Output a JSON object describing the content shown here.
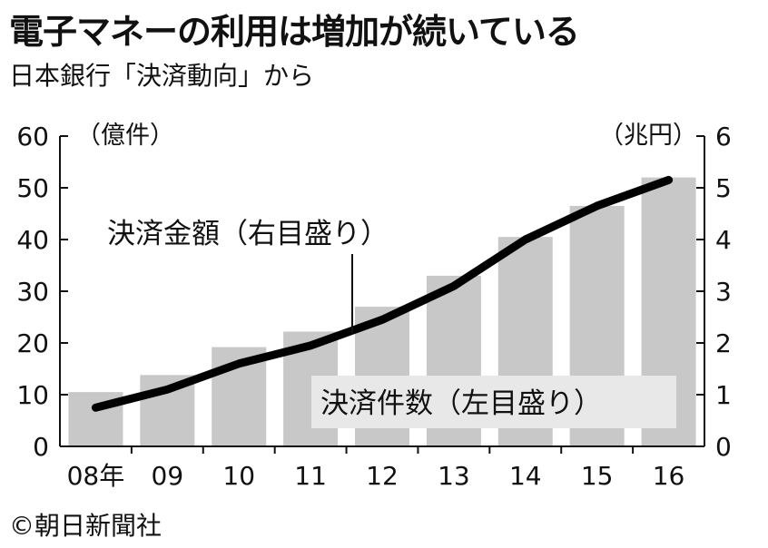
{
  "title": "電子マネーの利用は増加が続いている",
  "subtitle": "日本銀行「決済動向」から",
  "credit": "©朝日新聞社",
  "colors": {
    "bar": "#c8c8c8",
    "line": "#000000",
    "label_box": "#e8e8e8"
  },
  "chart_data": {
    "type": "bar+line",
    "categories": [
      "08年",
      "09",
      "10",
      "11",
      "12",
      "13",
      "14",
      "15",
      "16"
    ],
    "series": [
      {
        "name": "決済件数（左目盛り）",
        "type": "bar",
        "axis": "left",
        "values": [
          10.5,
          13.8,
          19.2,
          22.2,
          27.0,
          33.0,
          40.5,
          46.5,
          52.0
        ]
      },
      {
        "name": "決済金額（右目盛り）",
        "type": "line",
        "axis": "right",
        "values": [
          0.75,
          1.1,
          1.6,
          1.95,
          2.45,
          3.1,
          4.0,
          4.65,
          5.15
        ]
      }
    ],
    "left_axis": {
      "unit": "（億件）",
      "min": 0,
      "max": 60,
      "ticks": [
        0,
        10,
        20,
        30,
        40,
        50,
        60
      ]
    },
    "right_axis": {
      "unit": "（兆円）",
      "min": 0,
      "max": 6,
      "ticks": [
        0,
        1,
        2,
        3,
        4,
        5,
        6
      ]
    },
    "grid": false
  }
}
